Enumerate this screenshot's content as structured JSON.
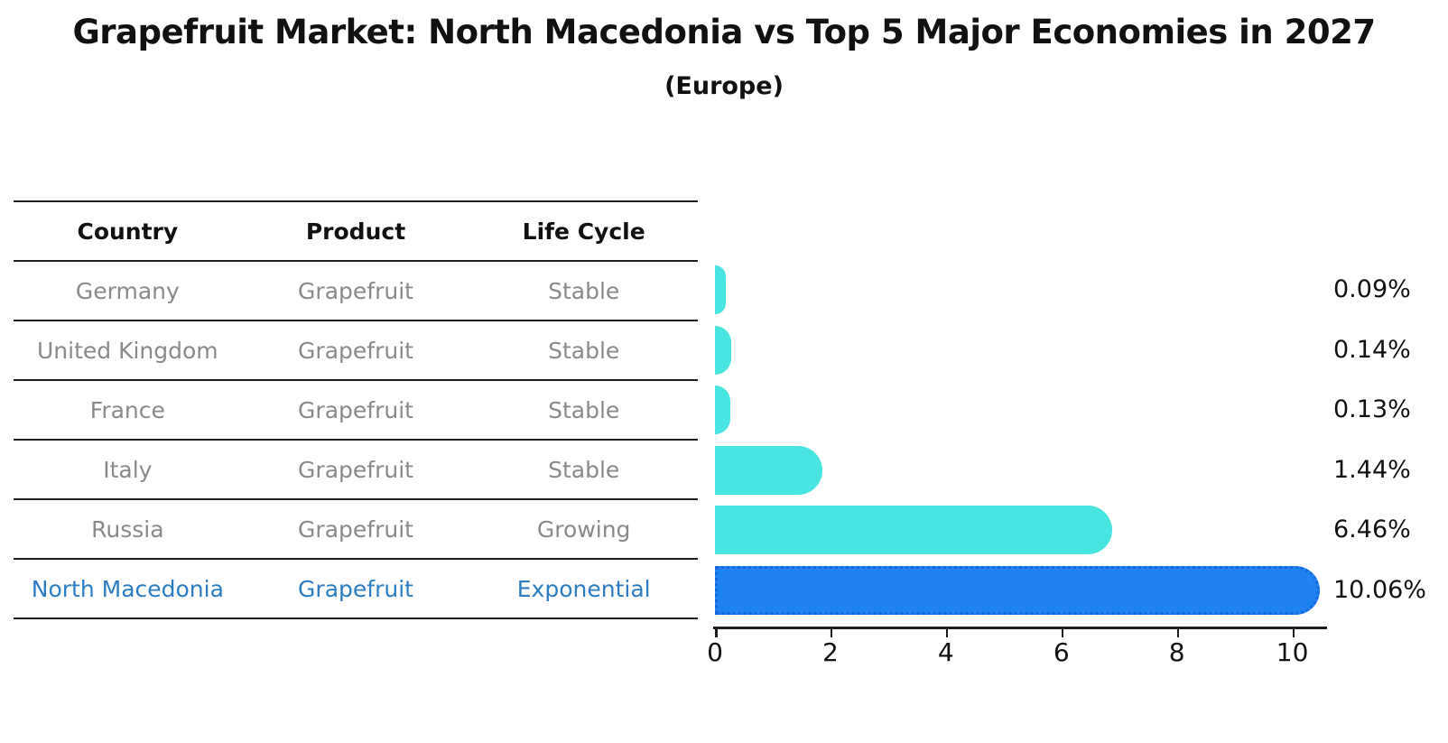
{
  "header": {
    "title": "Grapefruit Market: North Macedonia vs Top 5 Major Economies in 2027",
    "subtitle": "(Europe)"
  },
  "table": {
    "columns": [
      "Country",
      "Product",
      "Life Cycle"
    ],
    "rows": [
      {
        "country": "Germany",
        "product": "Grapefruit",
        "life_cycle": "Stable",
        "highlight": false
      },
      {
        "country": "United Kingdom",
        "product": "Grapefruit",
        "life_cycle": "Stable",
        "highlight": false
      },
      {
        "country": "France",
        "product": "Grapefruit",
        "life_cycle": "Stable",
        "highlight": false
      },
      {
        "country": "Italy",
        "product": "Grapefruit",
        "life_cycle": "Stable",
        "highlight": false
      },
      {
        "country": "Russia",
        "product": "Grapefruit",
        "life_cycle": "Growing",
        "highlight": false
      },
      {
        "country": "North Macedonia",
        "product": "Grapefruit",
        "life_cycle": "Exponential",
        "highlight": true
      }
    ]
  },
  "chart_data": {
    "type": "bar",
    "orientation": "horizontal",
    "title": "Grapefruit Market: North Macedonia vs Top 5 Major Economies in 2027",
    "subtitle": "(Europe)",
    "categories": [
      "Germany",
      "United Kingdom",
      "France",
      "Italy",
      "Russia",
      "North Macedonia"
    ],
    "values": [
      0.09,
      0.14,
      0.13,
      1.44,
      6.46,
      10.06
    ],
    "value_labels": [
      "0.09%",
      "0.14%",
      "0.13%",
      "1.44%",
      "6.46%",
      "10.06%"
    ],
    "xlabel": "",
    "ylabel": "",
    "xlim": [
      0,
      10.6
    ],
    "xticks": [
      0,
      2,
      4,
      6,
      8,
      10
    ],
    "grid": false,
    "legend": "none",
    "bar_color": "#47e4e0",
    "highlight_color": "#1e82f0",
    "highlight_edge_color": "#1569d6",
    "highlight_index": 5
  }
}
